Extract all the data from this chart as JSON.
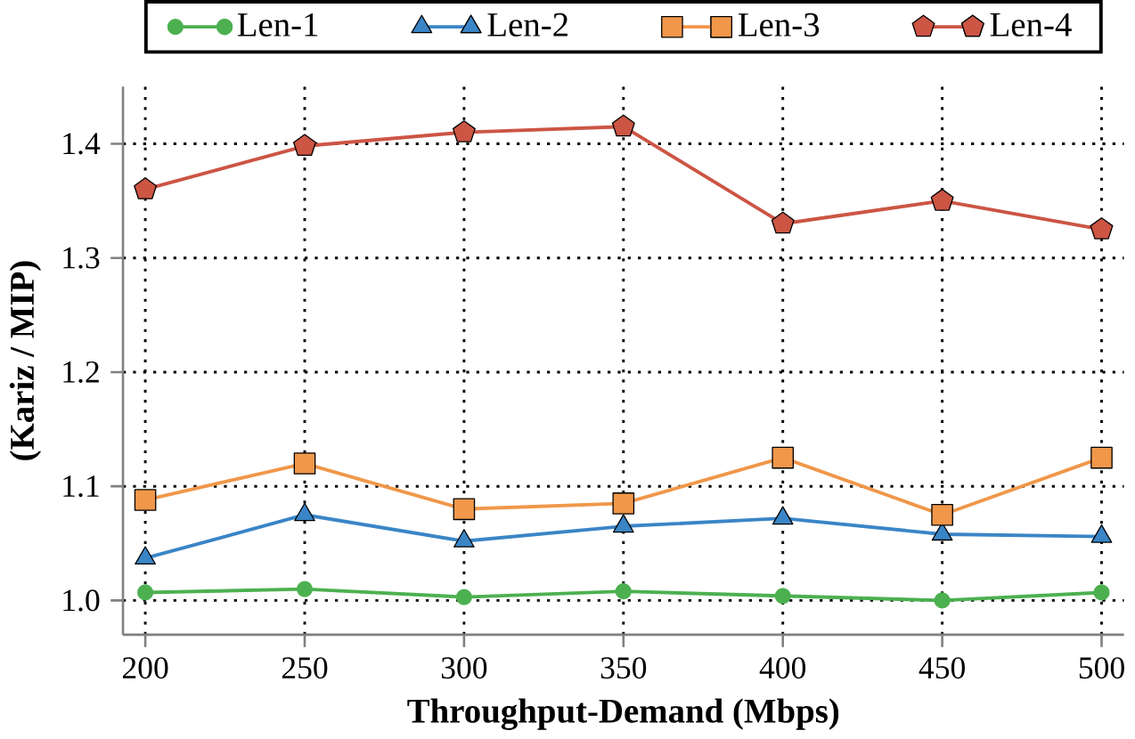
{
  "chart_data": {
    "type": "line",
    "xlabel": "Throughput-Demand (Mbps)",
    "ylabel": "(Kariz / MIP)",
    "x": [
      200,
      250,
      300,
      350,
      400,
      450,
      500
    ],
    "series": [
      {
        "name": "Len-1",
        "color": "#4cb050",
        "marker": "circle",
        "values": [
          1.007,
          1.01,
          1.003,
          1.008,
          1.004,
          1.0,
          1.007
        ]
      },
      {
        "name": "Len-2",
        "color": "#3a85c6",
        "marker": "triangle",
        "values": [
          1.037,
          1.075,
          1.052,
          1.065,
          1.072,
          1.058,
          1.056
        ]
      },
      {
        "name": "Len-3",
        "color": "#f0974a",
        "marker": "square",
        "values": [
          1.088,
          1.12,
          1.08,
          1.085,
          1.125,
          1.075,
          1.125
        ]
      },
      {
        "name": "Len-4",
        "color": "#cc5544",
        "marker": "star",
        "values": [
          1.36,
          1.398,
          1.41,
          1.415,
          1.33,
          1.35,
          1.325
        ]
      }
    ],
    "xlim": [
      193,
      507
    ],
    "ylim": [
      0.97,
      1.45
    ],
    "xticks": [
      200,
      250,
      300,
      350,
      400,
      450,
      500
    ],
    "yticks": [
      {
        "value": 1.0,
        "label": "1.0"
      },
      {
        "value": 1.1,
        "label": "1.1"
      },
      {
        "value": 1.2,
        "label": "1.2"
      },
      {
        "value": 1.3,
        "label": "1.3"
      },
      {
        "value": 1.4,
        "label": "1.4"
      }
    ],
    "grid": true,
    "legend": "top",
    "line_style": "solid"
  }
}
